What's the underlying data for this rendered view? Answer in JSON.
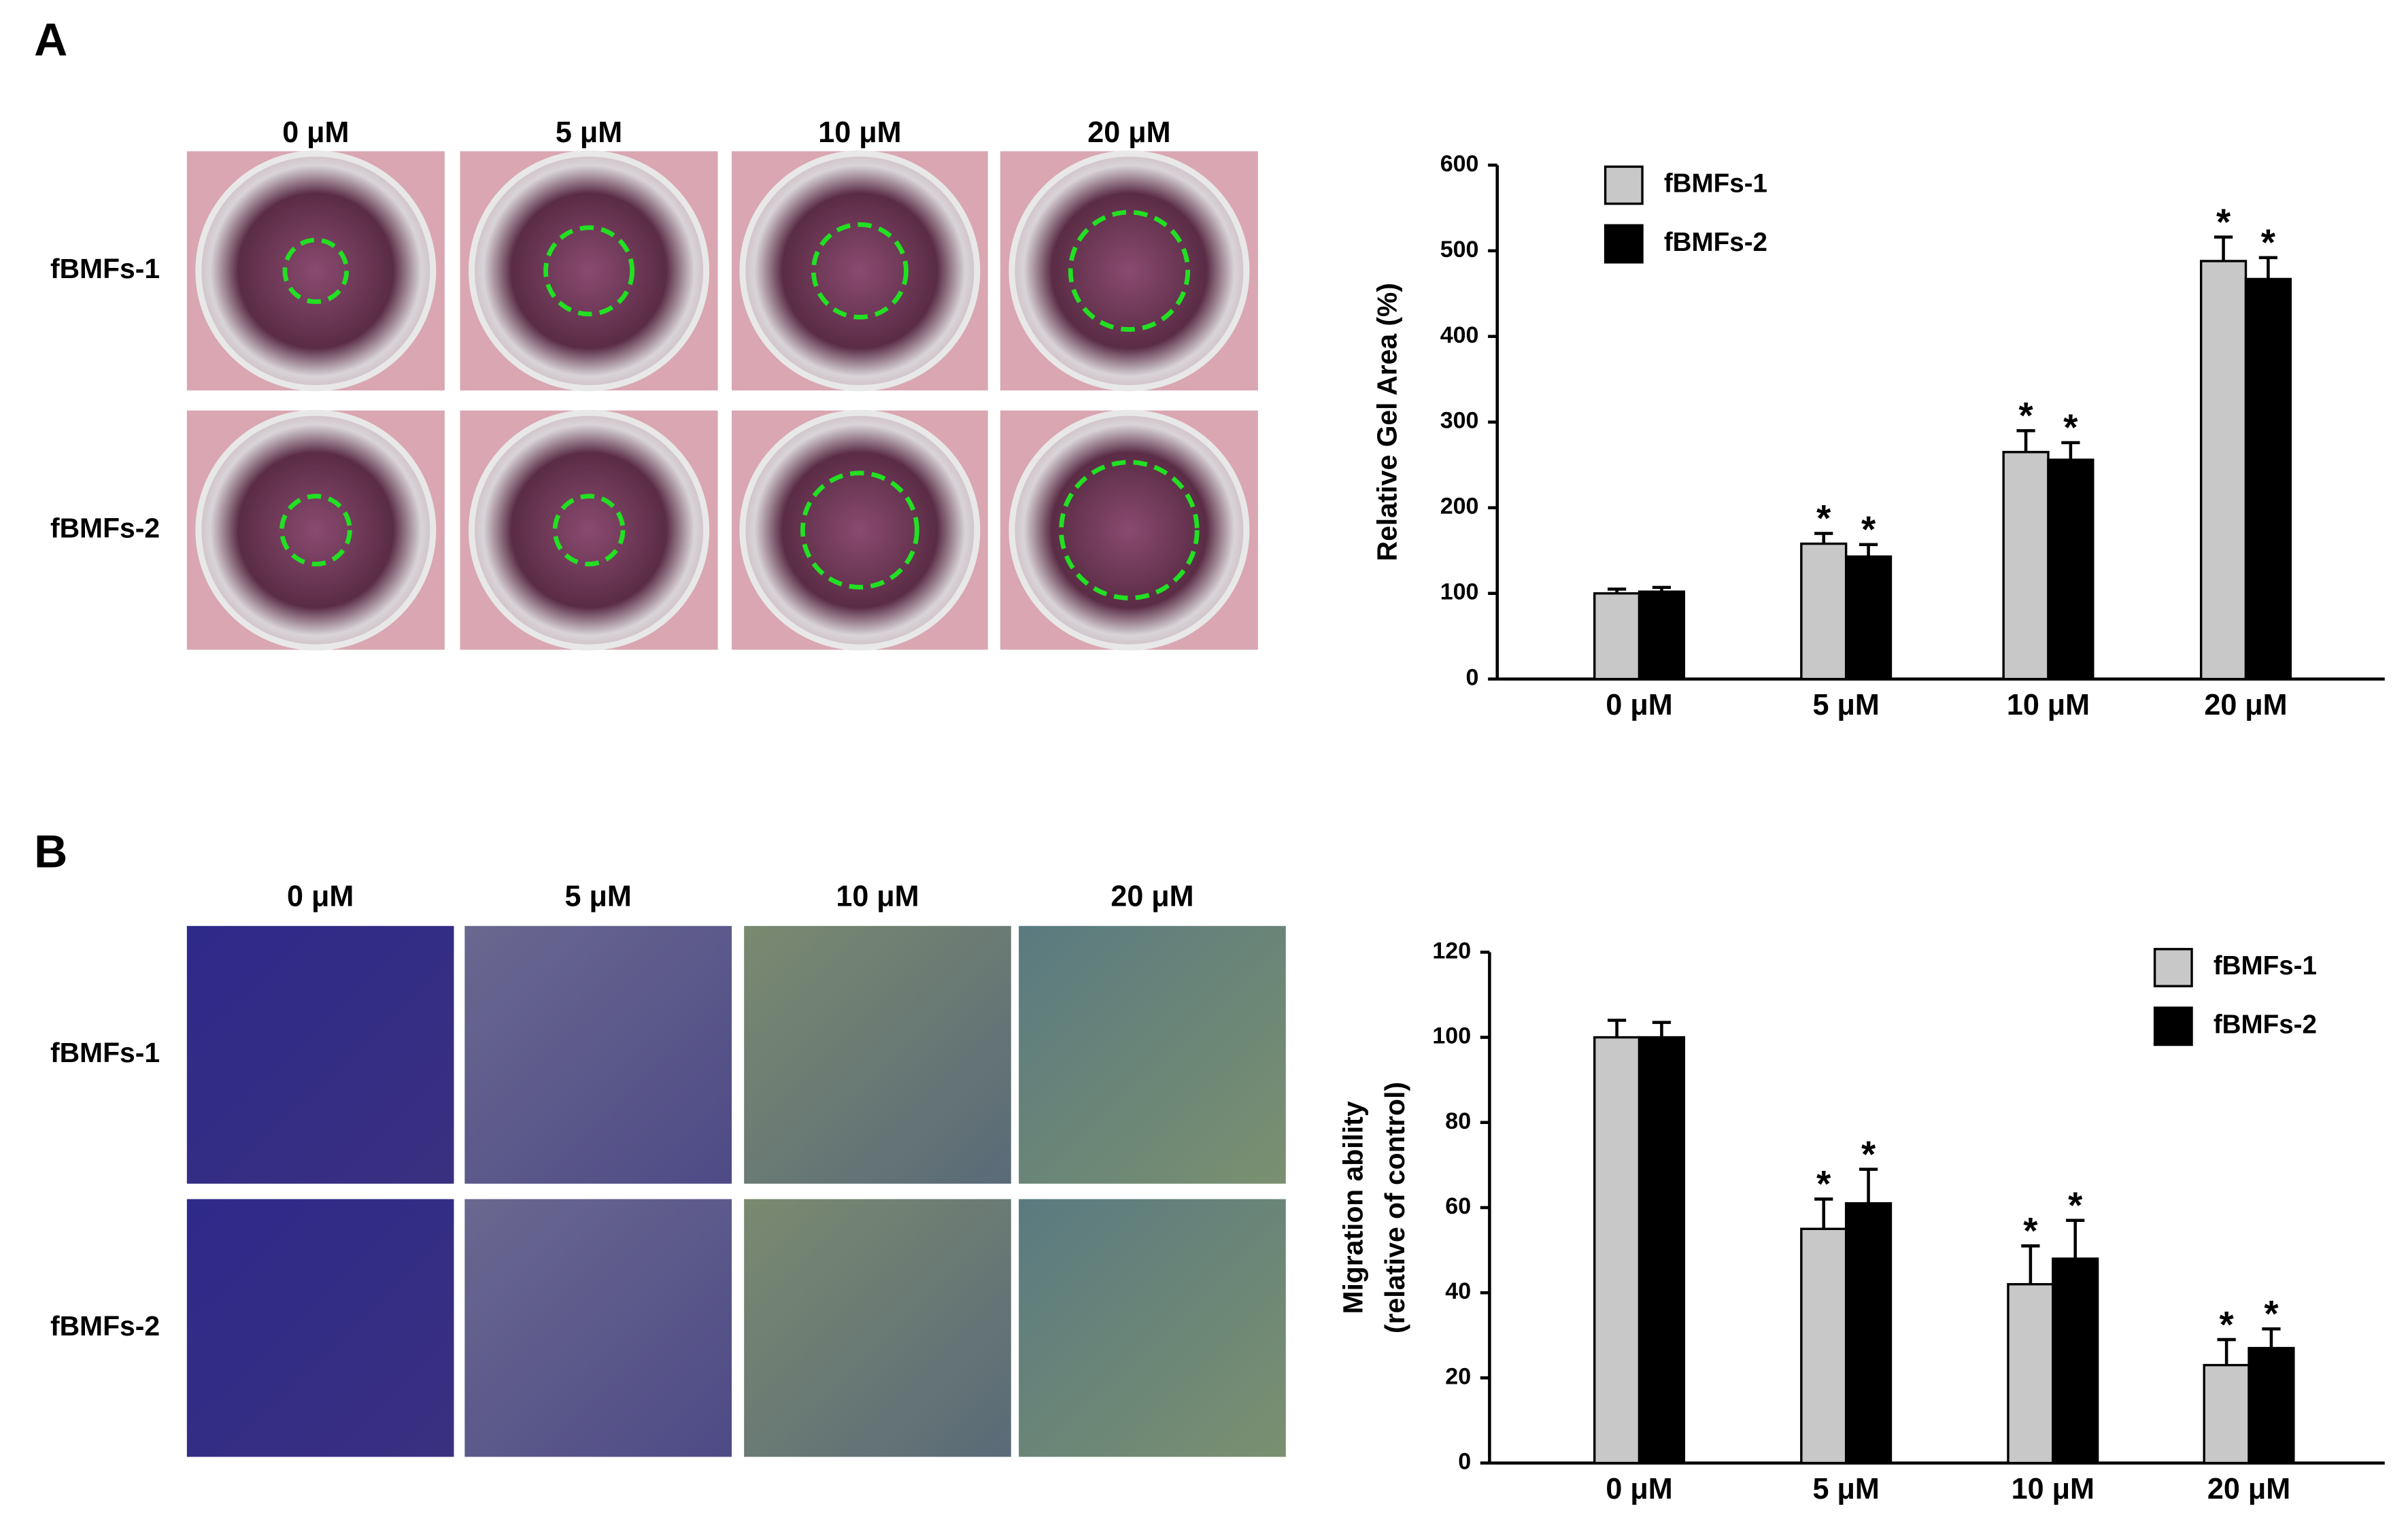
{
  "panels": [
    {
      "label": "A",
      "columns": [
        "0 μM",
        "5 μM",
        "10 μM",
        "20 μM"
      ],
      "rows": [
        "fBMFs-1",
        "fBMFs-2"
      ]
    },
    {
      "label": "B",
      "columns": [
        "0 μM",
        "5 μM",
        "10 μM",
        "20 μM"
      ],
      "rows": [
        "fBMFs-1",
        "fBMFs-2"
      ]
    }
  ],
  "chart_data": [
    {
      "type": "bar",
      "ylabel": "Relative Gel Area (%)",
      "categories": [
        "0 μM",
        "5 μM",
        "10 μM",
        "20 μM"
      ],
      "series": [
        {
          "name": "fBMFs-1",
          "color": "#c8c8c8",
          "values": [
            100,
            158,
            265,
            488
          ],
          "errors": [
            5,
            12,
            25,
            28
          ],
          "significance": [
            null,
            "*",
            "*",
            "*"
          ]
        },
        {
          "name": "fBMFs-2",
          "color": "#000000",
          "values": [
            102,
            143,
            256,
            467
          ],
          "errors": [
            5,
            14,
            20,
            25
          ],
          "significance": [
            null,
            "*",
            "*",
            "*"
          ]
        }
      ],
      "ylim": [
        0,
        600
      ],
      "yticks": [
        0,
        100,
        200,
        300,
        400,
        500,
        600
      ],
      "legend": "upper left",
      "grid": false
    },
    {
      "type": "bar",
      "ylabel": [
        "Migration ability",
        "(relative of control)"
      ],
      "categories": [
        "0 μM",
        "5 μM",
        "10 μM",
        "20 μM"
      ],
      "series": [
        {
          "name": "fBMFs-1",
          "color": "#c8c8c8",
          "values": [
            100,
            55,
            42,
            23
          ],
          "errors": [
            4,
            7,
            9,
            6
          ],
          "significance": [
            null,
            "*",
            "*",
            "*"
          ]
        },
        {
          "name": "fBMFs-2",
          "color": "#000000",
          "values": [
            100,
            61,
            48,
            27
          ],
          "errors": [
            3.5,
            8,
            9,
            4.5
          ],
          "significance": [
            null,
            "*",
            "*",
            "*"
          ]
        }
      ],
      "ylim": [
        0,
        120
      ],
      "yticks": [
        0,
        20,
        40,
        60,
        80,
        100,
        120
      ],
      "legend": "upper right",
      "grid": false
    }
  ]
}
